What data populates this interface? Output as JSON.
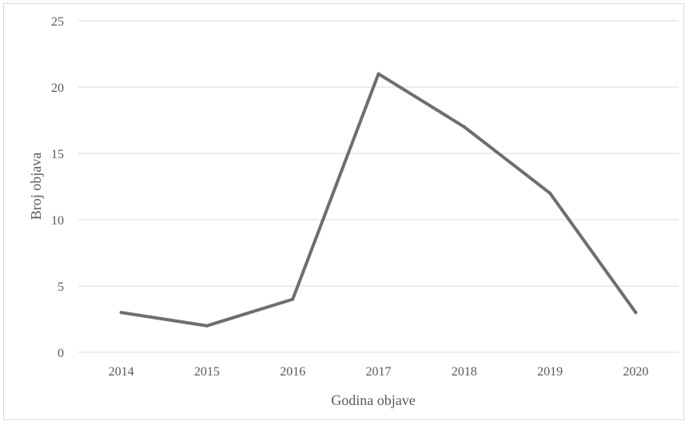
{
  "chart_data": {
    "type": "line",
    "title": "",
    "xlabel": "Godina objave",
    "ylabel": "Broj objava",
    "categories": [
      "2014",
      "2015",
      "2016",
      "2017",
      "2018",
      "2019",
      "2020"
    ],
    "series": [
      {
        "values": [
          3,
          2,
          4,
          21,
          17,
          12,
          3
        ]
      }
    ],
    "ylim": [
      0,
      25
    ],
    "yticks": [
      0,
      5,
      10,
      15,
      20,
      25
    ],
    "grid": true,
    "legend": "none",
    "colors": {
      "line": "#6e6e6e",
      "grid": "#d9d9d9",
      "text": "#595959"
    }
  }
}
